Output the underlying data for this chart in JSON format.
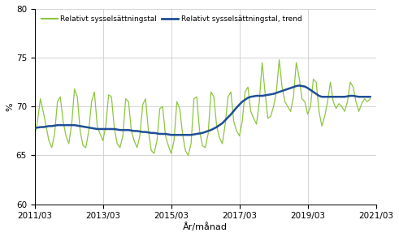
{
  "ylabel": "%",
  "xlabel": "År/månad",
  "ylim": [
    60,
    80
  ],
  "yticks": [
    60,
    65,
    70,
    75,
    80
  ],
  "legend_labels": [
    "Relativt sysselsättningstal",
    "Relativt sysselsättningstal, trend"
  ],
  "line_color_actual": "#8dc63f",
  "line_color_trend": "#1f4e96",
  "background_color": "#ffffff",
  "grid_color": "#cccccc",
  "xtick_labels": [
    "2011/03",
    "2013/03",
    "2015/03",
    "2017/03",
    "2019/03",
    "2021/03"
  ],
  "actual_values": [
    67.0,
    68.5,
    70.8,
    69.5,
    68.0,
    66.5,
    65.8,
    67.2,
    70.5,
    71.0,
    68.5,
    67.0,
    66.2,
    68.2,
    71.8,
    71.0,
    67.5,
    66.0,
    65.8,
    67.5,
    70.5,
    71.5,
    68.0,
    67.2,
    66.5,
    68.0,
    71.2,
    71.0,
    67.8,
    66.2,
    65.8,
    67.0,
    70.8,
    70.5,
    67.5,
    66.5,
    65.8,
    67.0,
    70.2,
    70.8,
    67.5,
    65.5,
    65.2,
    66.5,
    69.8,
    70.0,
    67.0,
    66.0,
    65.2,
    66.5,
    70.5,
    69.8,
    67.2,
    65.5,
    65.0,
    66.2,
    70.8,
    71.0,
    67.5,
    66.0,
    65.8,
    67.2,
    71.5,
    71.0,
    68.0,
    66.8,
    66.2,
    68.2,
    71.0,
    71.5,
    68.5,
    67.5,
    67.0,
    68.5,
    71.5,
    72.0,
    69.5,
    68.8,
    68.2,
    70.5,
    74.5,
    71.5,
    68.8,
    69.0,
    70.0,
    71.5,
    74.8,
    72.0,
    70.5,
    70.0,
    69.5,
    71.0,
    74.5,
    73.0,
    70.8,
    70.5,
    69.2,
    70.0,
    72.8,
    72.5,
    69.5,
    68.0,
    69.0,
    70.5,
    72.5,
    70.5,
    69.8,
    70.3,
    70.0,
    69.5,
    70.5,
    72.5,
    72.0,
    70.5,
    69.5,
    70.3,
    70.8,
    70.5,
    70.8
  ],
  "trend_values": [
    67.8,
    67.85,
    67.9,
    67.9,
    67.95,
    68.0,
    68.0,
    68.05,
    68.1,
    68.1,
    68.1,
    68.1,
    68.1,
    68.1,
    68.1,
    68.05,
    68.0,
    67.95,
    67.9,
    67.85,
    67.8,
    67.75,
    67.7,
    67.7,
    67.7,
    67.7,
    67.7,
    67.7,
    67.7,
    67.65,
    67.6,
    67.6,
    67.6,
    67.6,
    67.55,
    67.5,
    67.5,
    67.45,
    67.4,
    67.4,
    67.35,
    67.3,
    67.3,
    67.25,
    67.2,
    67.2,
    67.2,
    67.15,
    67.1,
    67.1,
    67.1,
    67.1,
    67.1,
    67.1,
    67.1,
    67.1,
    67.15,
    67.2,
    67.25,
    67.3,
    67.4,
    67.5,
    67.6,
    67.75,
    67.9,
    68.1,
    68.3,
    68.6,
    68.9,
    69.2,
    69.55,
    69.9,
    70.2,
    70.5,
    70.7,
    70.9,
    71.0,
    71.05,
    71.1,
    71.1,
    71.1,
    71.15,
    71.2,
    71.25,
    71.3,
    71.4,
    71.5,
    71.6,
    71.7,
    71.8,
    71.9,
    72.0,
    72.1,
    72.15,
    72.1,
    72.05,
    71.9,
    71.7,
    71.5,
    71.3,
    71.1,
    71.0,
    71.0,
    71.0,
    71.0,
    71.0,
    71.0,
    71.0,
    71.0,
    71.0,
    71.05,
    71.1,
    71.1,
    71.05,
    71.0,
    71.0,
    71.0,
    71.0,
    71.0
  ]
}
